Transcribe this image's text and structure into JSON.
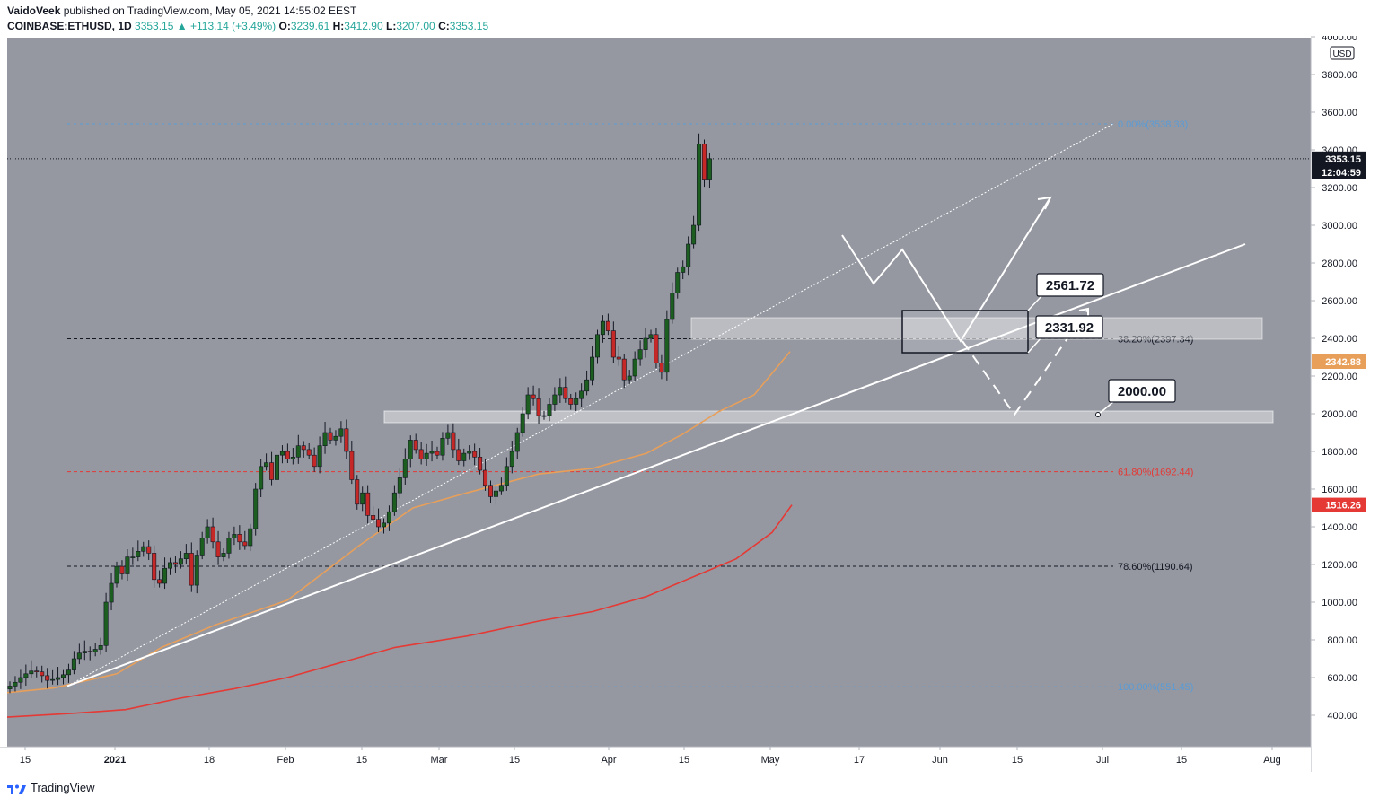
{
  "header": {
    "author": "VaidoVeek",
    "published_text": "published on TradingView.com, May 05, 2021 14:55:02 EEST",
    "symbol": "COINBASE:ETHUSD, 1D",
    "last": "3353.15",
    "change": "+113.14 (+3.49%)",
    "open_label": "O:",
    "open": "3239.61",
    "high_label": "H:",
    "high": "3412.90",
    "low_label": "L:",
    "low": "3207.00",
    "close_label": "C:",
    "close": "3353.15"
  },
  "footer": {
    "brand": "TradingView"
  },
  "colors": {
    "plot_bg": "#9598a1",
    "up": "#1b5e20",
    "down": "#c62828",
    "ma_orange": "#e89f5a",
    "ma_red": "#e53935",
    "accent_blue": "#5b9bd5"
  },
  "chart_data": {
    "type": "candlestick",
    "instrument": "COINBASE:ETHUSD",
    "interval": "1D",
    "currency": "USD",
    "ylim": [
      240,
      4060
    ],
    "y_ticks": [
      "4000.00",
      "3800.00",
      "3600.00",
      "3400.00",
      "3200.00",
      "3000.00",
      "2800.00",
      "2600.00",
      "2400.00",
      "2200.00",
      "2000.00",
      "1800.00",
      "1600.00",
      "1400.00",
      "1200.00",
      "1000.00",
      "800.00",
      "600.00",
      "400.00"
    ],
    "x_ticks": [
      "15",
      "2021",
      "18",
      "Feb",
      "15",
      "Mar",
      "15",
      "Apr",
      "15",
      "May",
      "17",
      "Jun",
      "15",
      "Jul",
      "15",
      "Aug"
    ],
    "price_labels": {
      "last": "3353.15",
      "countdown": "12:04:59",
      "ma_orange": "2342.88",
      "ma_red": "1516.26"
    },
    "fib_levels": [
      {
        "label": "0.00%(3538.33)",
        "value": 3538.33
      },
      {
        "label": "38.20%(2397.34)",
        "value": 2397.34
      },
      {
        "label": "61.80%(1692.44)",
        "value": 1692.44
      },
      {
        "label": "78.60%(1190.64)",
        "value": 1190.64
      },
      {
        "label": "100.00%(551.45)",
        "value": 551.45
      }
    ],
    "callouts": [
      "2561.72",
      "2331.92",
      "2000.00"
    ]
  }
}
